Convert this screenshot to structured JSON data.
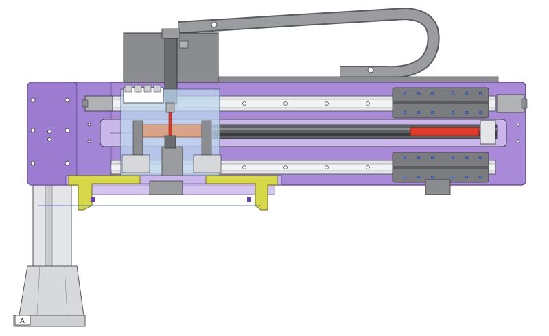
{
  "drawing": {
    "view_label": "A",
    "colors": {
      "background": "#ffffff",
      "frame_purple": "#a98ad8",
      "frame_purple_dark": "#6e4f9c",
      "steel_gray": "#8a8c90",
      "steel_dark": "#4a4c50",
      "light_gray": "#d6d8dc",
      "column_gray": "#e4e5e8",
      "yellow_bracket": "#d6d84a",
      "yellow_dark": "#8a8a20",
      "red_cylinder": "#e03a2a",
      "copper": "#d9a38a",
      "translucent_blue": "#bcd6ee",
      "blue_line": "#3355cc"
    }
  }
}
